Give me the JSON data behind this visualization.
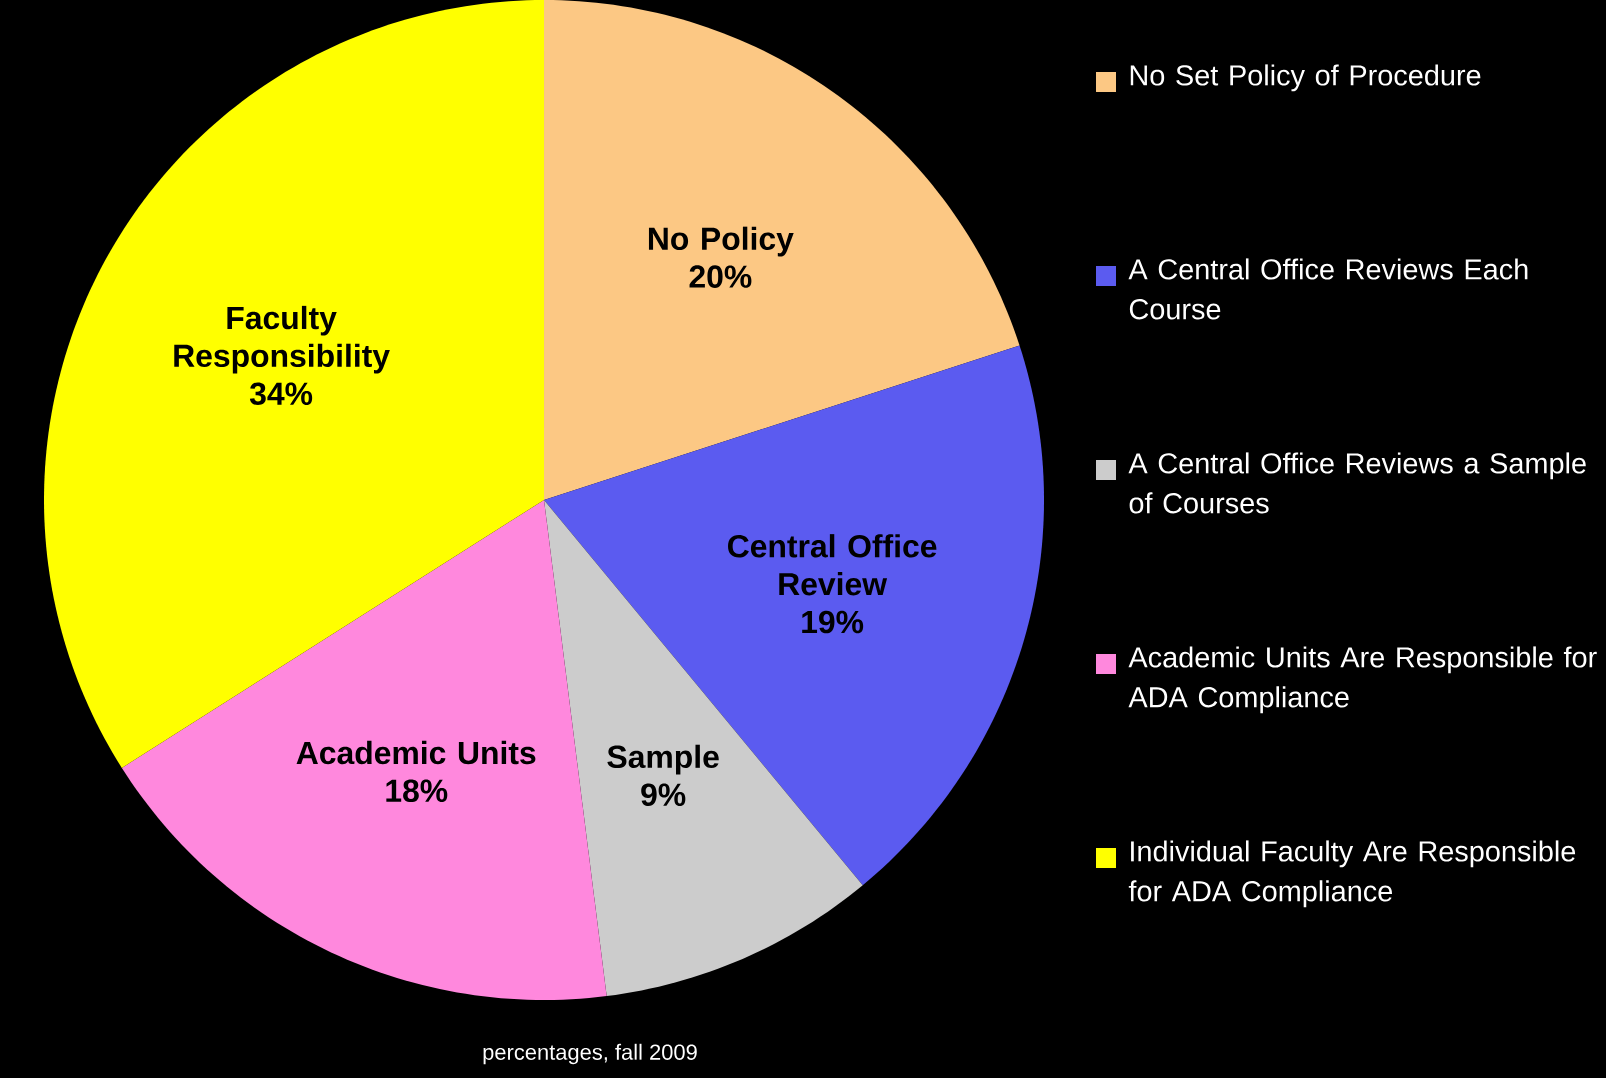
{
  "chart_data": {
    "type": "pie",
    "categories": [
      "No Set Policy of Procedure",
      "A Central Office Reviews Each Course",
      "A Central Office Reviews a Sample of Courses",
      "Academic Units Are Responsible for ADA Compliance",
      "Individual Faculty Are Responsible for ADA Compliance"
    ],
    "values": [
      20,
      19,
      9,
      18,
      34
    ],
    "value_labels": [
      "20%",
      "19%",
      "9%",
      "18%",
      "34%"
    ],
    "colors": [
      "#fcc884",
      "#5b5bf0",
      "#cccccc",
      "#ff88dd",
      "#ffff00"
    ],
    "annotations": [
      "No Policy",
      "Central Office Review",
      "Sample",
      "Academic Units",
      "Faculty Responsibility",
      "percentages, fall 2009"
    ],
    "legend": "right"
  }
}
